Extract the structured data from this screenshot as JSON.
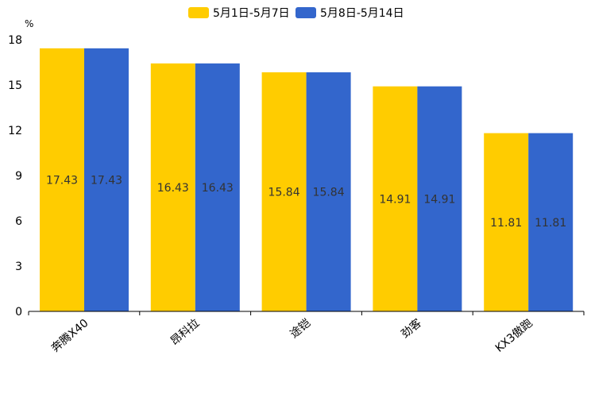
{
  "chart_data": {
    "type": "bar",
    "title": "",
    "xlabel": "",
    "ylabel": "%",
    "ylim": [
      0,
      18
    ],
    "yticks": [
      0,
      3,
      6,
      9,
      12,
      15,
      18
    ],
    "grid": false,
    "legend_position": "top-center",
    "categories": [
      "奔腾X40",
      "昂科拉",
      "途铠",
      "劲客",
      "KX3傲跑"
    ],
    "series": [
      {
        "name": "5月1日-5月7日",
        "color": "#FFCC00",
        "values": [
          17.43,
          16.43,
          15.84,
          14.91,
          11.81
        ]
      },
      {
        "name": "5月8日-5月14日",
        "color": "#3366CC",
        "values": [
          17.43,
          16.43,
          15.84,
          14.91,
          11.81
        ]
      }
    ]
  }
}
